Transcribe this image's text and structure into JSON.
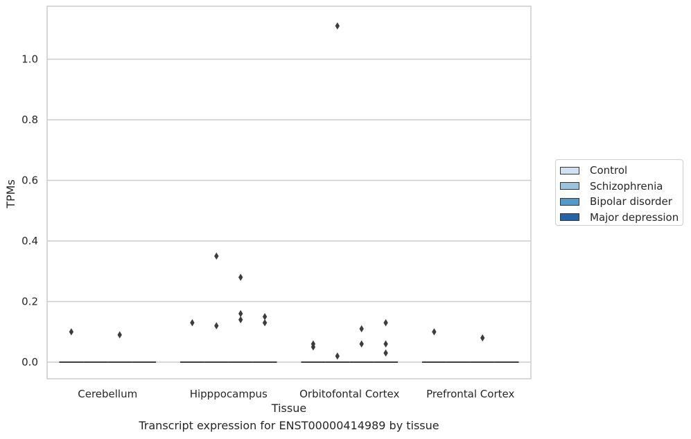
{
  "chart_data": {
    "type": "box",
    "title": "",
    "caption": "Transcript expression for ENST00000414989 by tissue",
    "xlabel": "Tissue",
    "ylabel": "TPMs",
    "ylim": [
      -0.055,
      1.175
    ],
    "yticks": [
      "0.0",
      "0.2",
      "0.4",
      "0.6",
      "0.8",
      "1.0"
    ],
    "grid": true,
    "legend_position": "right",
    "categories": [
      "Cerebellum",
      "Hipppocampus",
      "Orbitofontal Cortex",
      "Prefrontal Cortex"
    ],
    "series": [
      {
        "name": "Control",
        "color": "#d1e1f1"
      },
      {
        "name": "Schizophrenia",
        "color": "#9cc3de"
      },
      {
        "name": "Bipolar disorder",
        "color": "#539ac8"
      },
      {
        "name": "Major depression",
        "color": "#2463a8"
      }
    ],
    "medians": [
      [
        0,
        0,
        0,
        0
      ],
      [
        0,
        0,
        0,
        0
      ],
      [
        0,
        0,
        0,
        0
      ],
      [
        0,
        0,
        0,
        0
      ]
    ],
    "outliers": [
      {
        "category": "Cerebellum",
        "series": "Control",
        "values": [
          0.1
        ]
      },
      {
        "category": "Cerebellum",
        "series": "Bipolar disorder",
        "values": [
          0.09
        ]
      },
      {
        "category": "Hipppocampus",
        "series": "Control",
        "values": [
          0.13
        ]
      },
      {
        "category": "Hipppocampus",
        "series": "Schizophrenia",
        "values": [
          0.12,
          0.35
        ]
      },
      {
        "category": "Hipppocampus",
        "series": "Bipolar disorder",
        "values": [
          0.28,
          0.16,
          0.14
        ]
      },
      {
        "category": "Hipppocampus",
        "series": "Major depression",
        "values": [
          0.15,
          0.13
        ]
      },
      {
        "category": "Orbitofontal Cortex",
        "series": "Control",
        "values": [
          0.06,
          0.05
        ]
      },
      {
        "category": "Orbitofontal Cortex",
        "series": "Schizophrenia",
        "values": [
          1.11,
          0.02
        ]
      },
      {
        "category": "Orbitofontal Cortex",
        "series": "Bipolar disorder",
        "values": [
          0.11,
          0.06
        ]
      },
      {
        "category": "Orbitofontal Cortex",
        "series": "Major depression",
        "values": [
          0.13,
          0.06,
          0.03
        ]
      },
      {
        "category": "Prefrontal Cortex",
        "series": "Control",
        "values": [
          0.1
        ]
      },
      {
        "category": "Prefrontal Cortex",
        "series": "Bipolar disorder",
        "values": [
          0.08
        ]
      }
    ]
  }
}
